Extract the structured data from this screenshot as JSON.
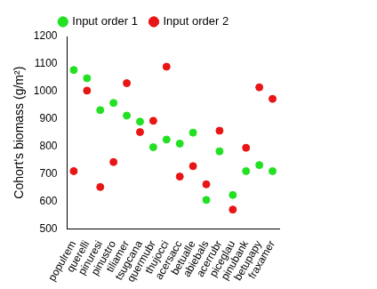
{
  "chart_data": {
    "type": "scatter",
    "y_label": "Cohort's biomass (g/m²)",
    "categories": [
      "populrem",
      "querelli",
      "pinuresi",
      "pinustro",
      "tiliamer",
      "tsugcana",
      "quermubr",
      "thujocci",
      "acersacc",
      "betualle",
      "abiebals",
      "acerrubr",
      "piceglau",
      "pinubank",
      "betupapy",
      "fraxamer"
    ],
    "series": [
      {
        "name": "Input order 1",
        "color": "#22e022",
        "marker": "circle",
        "values": [
          1078,
          1048,
          932,
          958,
          912,
          890,
          797,
          825,
          810,
          850,
          605,
          782,
          623,
          710,
          732,
          710
        ]
      },
      {
        "name": "Input order 2",
        "color": "#e81515",
        "marker": "circle",
        "values": [
          710,
          1003,
          652,
          743,
          1030,
          852,
          893,
          1090,
          690,
          728,
          662,
          857,
          570,
          795,
          1015,
          973
        ]
      }
    ],
    "ylim": [
      500,
      1200
    ],
    "yticks": [
      500,
      600,
      700,
      800,
      900,
      1000,
      1100,
      1200
    ],
    "grid": false,
    "legend": "top"
  }
}
